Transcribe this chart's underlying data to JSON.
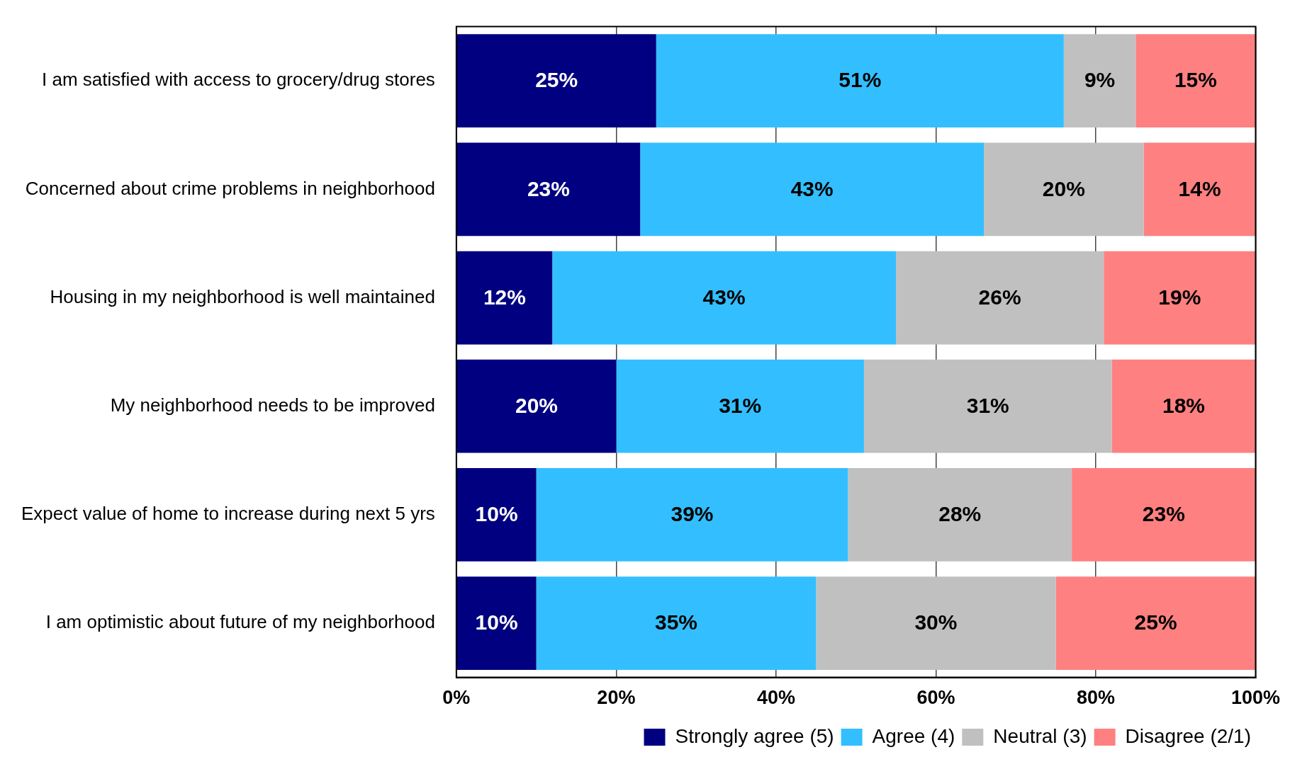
{
  "chart_data": {
    "type": "bar",
    "orientation": "horizontal",
    "stacked": true,
    "categories": [
      "I am satisfied with access to grocery/drug stores",
      "Concerned about crime problems in neighborhood",
      "Housing in my neighborhood is well maintained",
      "My neighborhood needs to be improved",
      "Expect value of home to increase during next 5 yrs",
      "I am optimistic about future of my neighborhood"
    ],
    "series": [
      {
        "name": "Strongly agree (5)",
        "color": "#000080",
        "values": [
          25,
          23,
          12,
          20,
          10,
          10
        ],
        "value_labels": [
          "25%",
          "23%",
          "12%",
          "20%",
          "10%",
          "10%"
        ]
      },
      {
        "name": "Agree (4)",
        "color": "#33bfff",
        "values": [
          51,
          43,
          43,
          31,
          39,
          35
        ],
        "value_labels": [
          "51%",
          "43%",
          "43%",
          "31%",
          "39%",
          "35%"
        ]
      },
      {
        "name": "Neutral (3)",
        "color": "#c0c0c0",
        "values": [
          9,
          20,
          26,
          31,
          28,
          30
        ],
        "value_labels": [
          "9%",
          "20%",
          "26%",
          "31%",
          "28%",
          "30%"
        ]
      },
      {
        "name": "Disagree (2/1)",
        "color": "#ff8080",
        "values": [
          15,
          14,
          19,
          18,
          23,
          25
        ],
        "value_labels": [
          "15%",
          "14%",
          "19%",
          "18%",
          "23%",
          "25%"
        ]
      }
    ],
    "xlim": [
      0,
      100
    ],
    "xticks": [
      {
        "value": 0,
        "label": "0%"
      },
      {
        "value": 20,
        "label": "20%"
      },
      {
        "value": 40,
        "label": "40%"
      },
      {
        "value": 60,
        "label": "60%"
      },
      {
        "value": 80,
        "label": "80%"
      },
      {
        "value": 100,
        "label": "100%"
      }
    ],
    "grid": "x",
    "legend": "bottom"
  }
}
